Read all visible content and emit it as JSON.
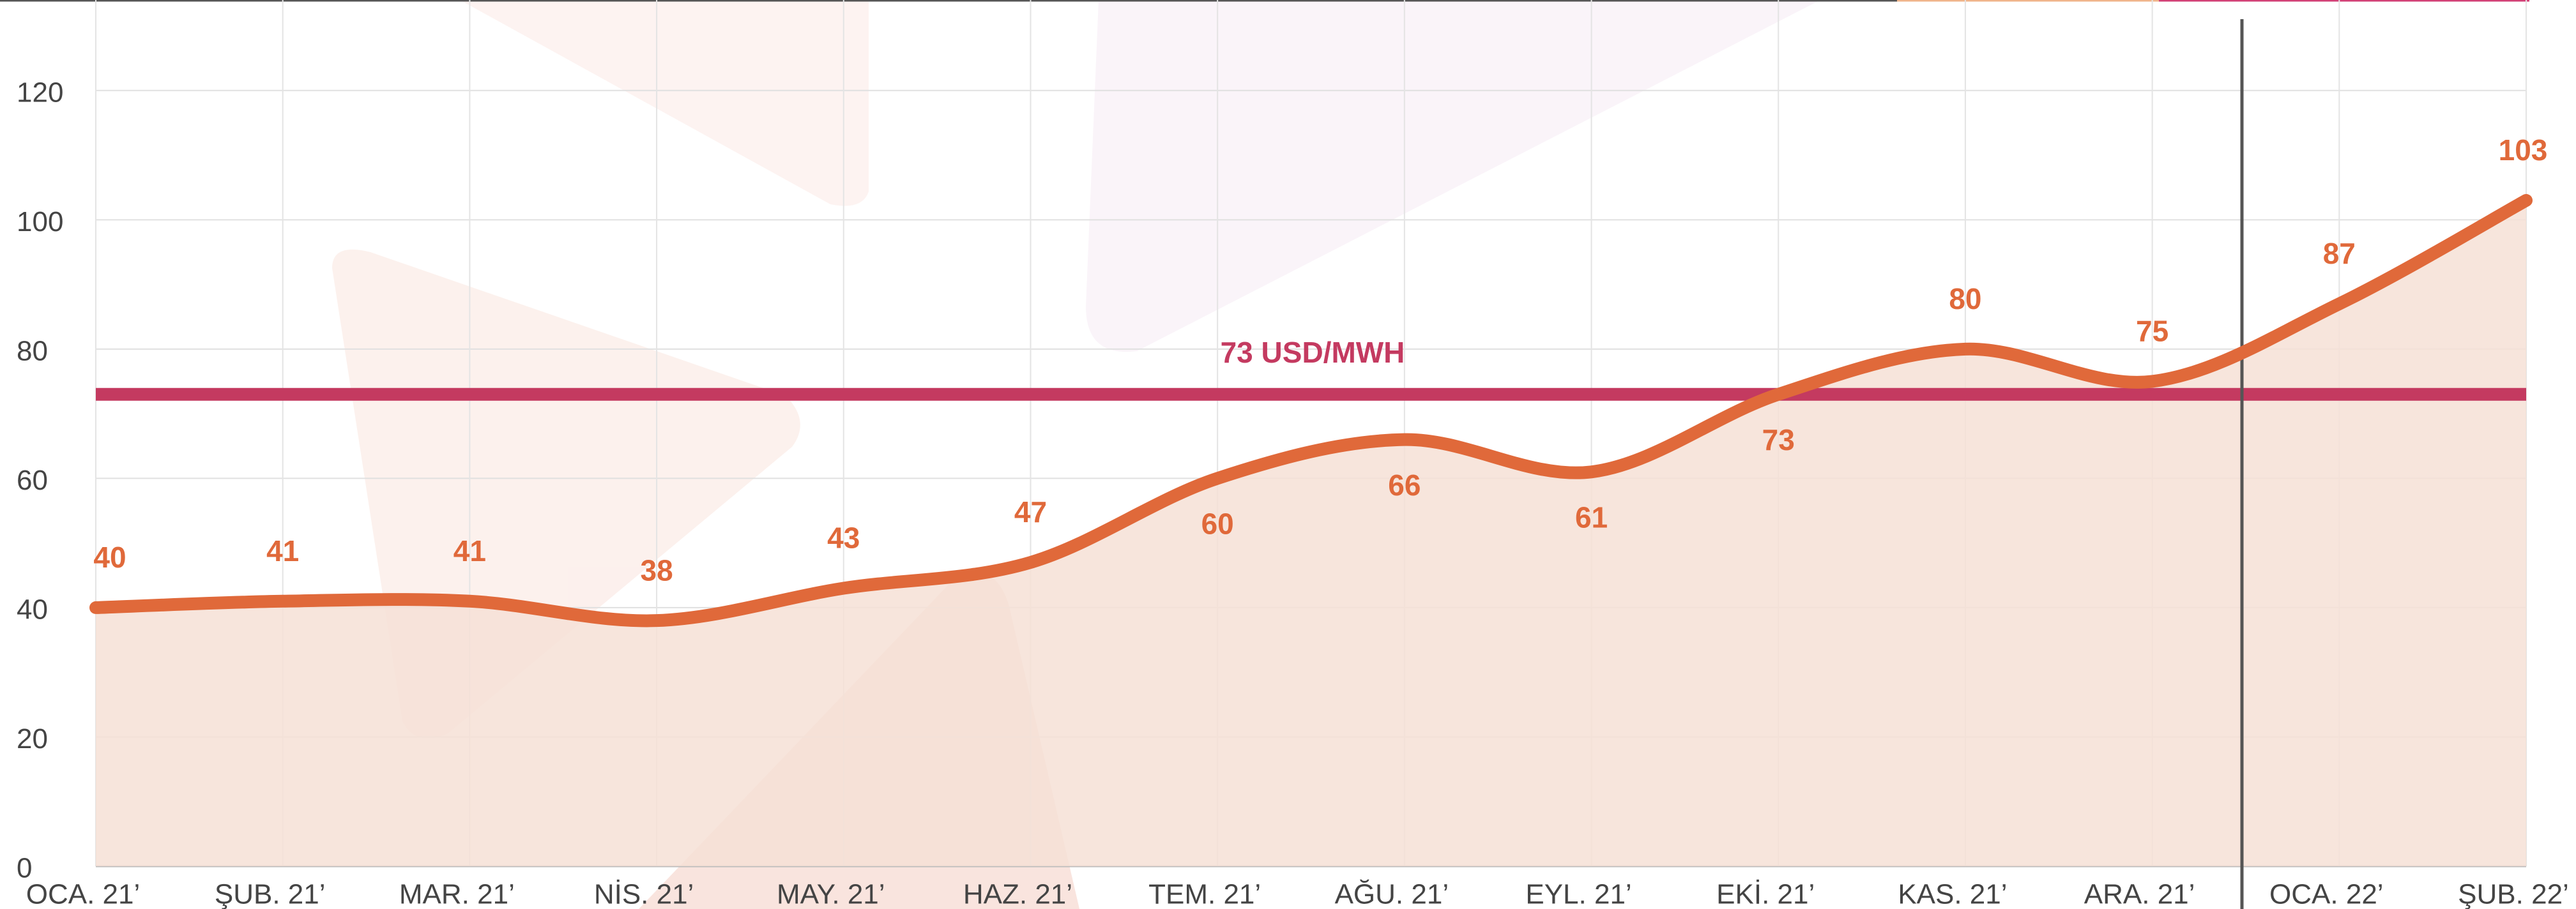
{
  "chart_data": {
    "type": "line",
    "categories": [
      "OCA. 21’",
      "ŞUB. 21’",
      "MAR. 21’",
      "NİS. 21’",
      "MAY. 21’",
      "HAZ. 21’",
      "TEM. 21’",
      "AĞU. 21’",
      "EYL. 21’",
      "EKİ. 21’",
      "KAS. 21’",
      "ARA. 21’",
      "OCA. 22’",
      "ŞUB. 22’"
    ],
    "values": [
      40,
      41,
      41,
      38,
      43,
      47,
      60,
      66,
      61,
      73,
      80,
      75,
      87,
      103
    ],
    "color": "#e0693a",
    "area_color": "#f6e0d6",
    "reference": {
      "value": 73,
      "label": "73 USD/MWH",
      "color": "#c43a60"
    },
    "ylim": [
      0,
      134
    ],
    "yticks": [
      0,
      20,
      40,
      60,
      80,
      100,
      120
    ],
    "grid": true
  }
}
